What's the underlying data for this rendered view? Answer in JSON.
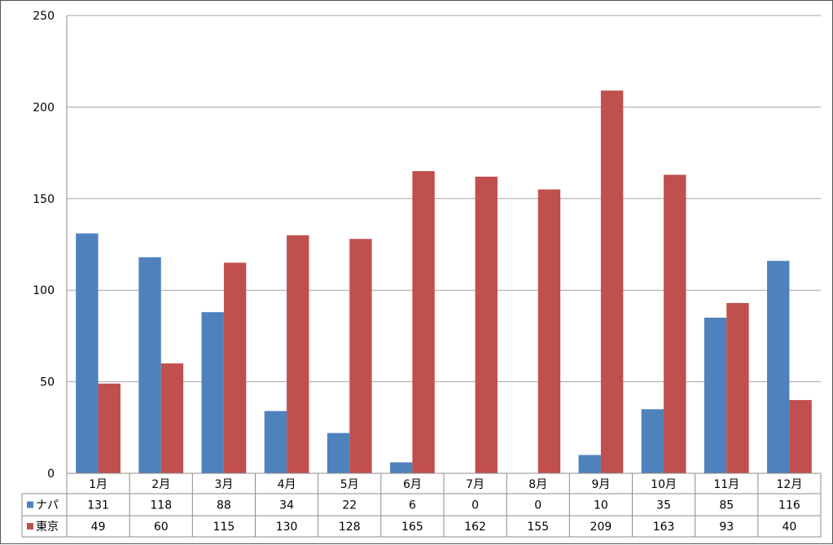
{
  "chart_data": {
    "type": "bar",
    "title": "",
    "xlabel": "",
    "ylabel": "",
    "ylim": [
      0,
      250
    ],
    "yticks": [
      0,
      50,
      100,
      150,
      200,
      250
    ],
    "grid": true,
    "legend": "data-table",
    "categories": [
      "1月",
      "2月",
      "3月",
      "4月",
      "5月",
      "6月",
      "7月",
      "8月",
      "9月",
      "10月",
      "11月",
      "12月"
    ],
    "series": [
      {
        "name": "ナパ",
        "color": "#4f81bd",
        "values": [
          131,
          118,
          88,
          34,
          22,
          6,
          0,
          0,
          10,
          35,
          85,
          116
        ]
      },
      {
        "name": "東京",
        "color": "#c0504d",
        "values": [
          49,
          60,
          115,
          130,
          128,
          165,
          162,
          155,
          209,
          163,
          93,
          40
        ]
      }
    ]
  }
}
